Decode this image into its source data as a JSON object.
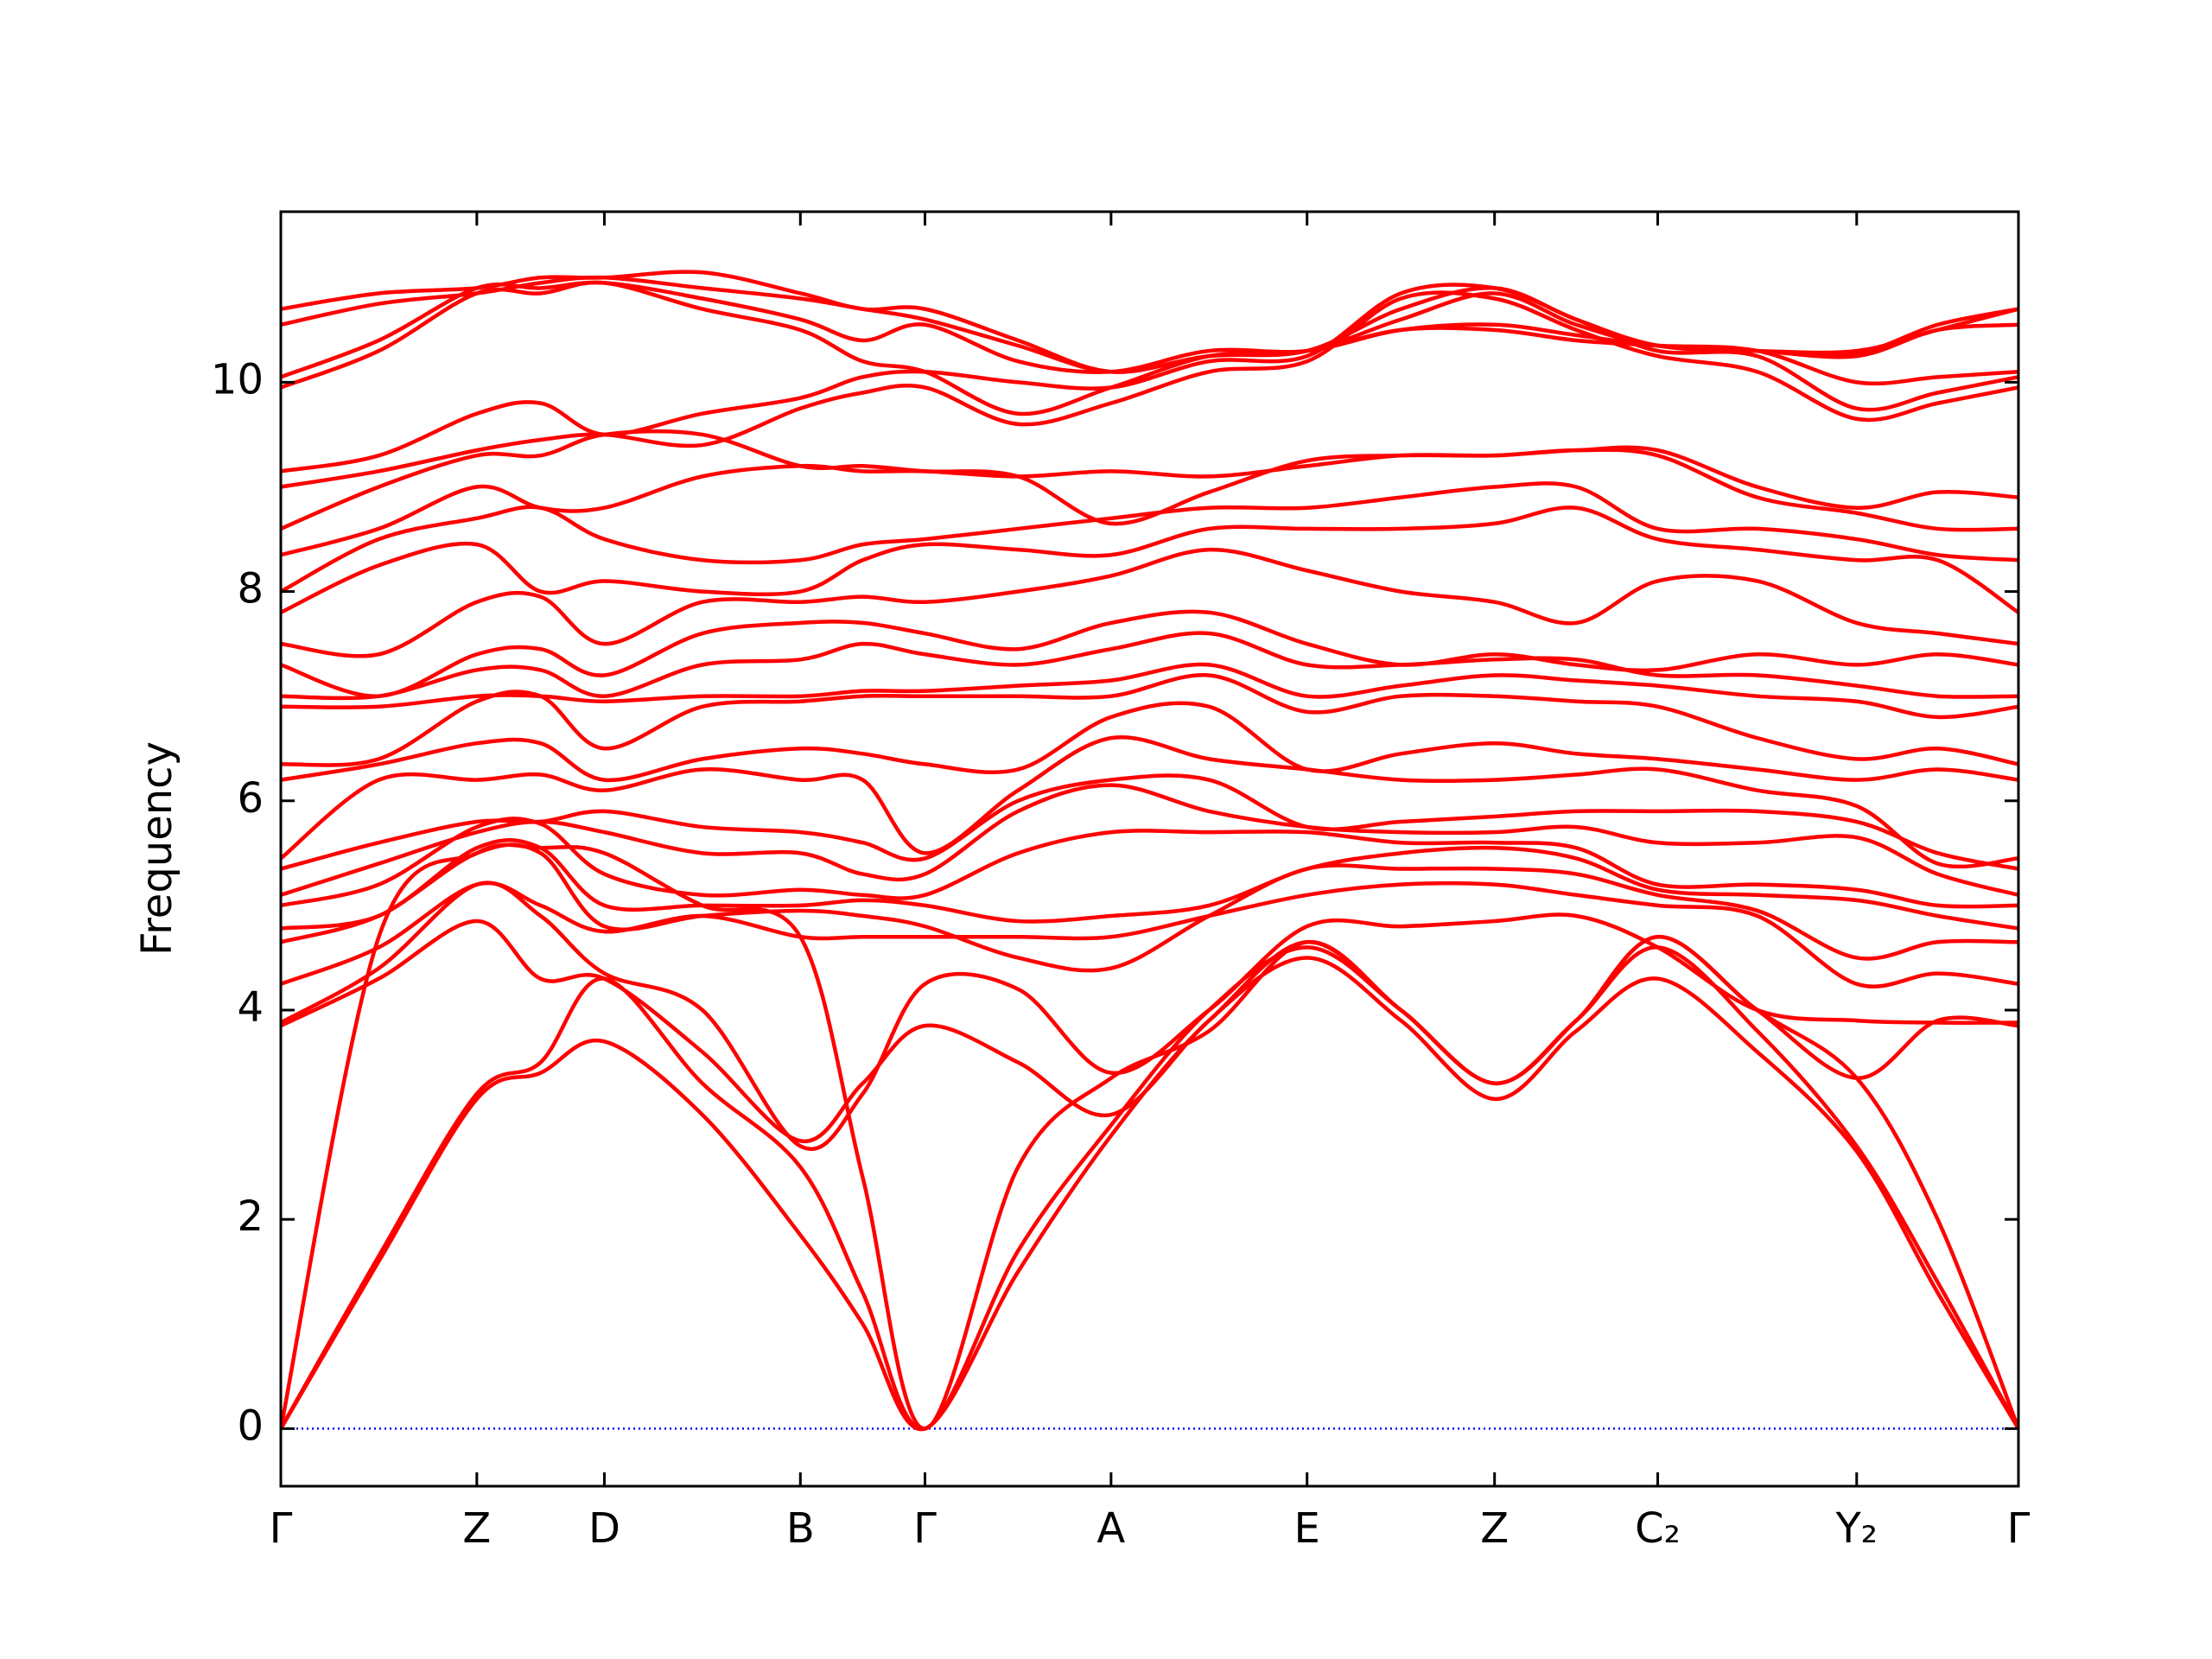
{
  "chart_data": {
    "type": "line",
    "y_label": "Frequency",
    "color": "#ff0000",
    "x": [
      0,
      0.0564,
      0.1128,
      0.1495,
      0.1862,
      0.2426,
      0.299,
      0.3349,
      0.3707,
      0.4243,
      0.4778,
      0.5342,
      0.5906,
      0.6446,
      0.6985,
      0.7455,
      0.7924,
      0.8497,
      0.9069,
      0.9535,
      1.0
    ],
    "xlim": [
      0,
      1.0
    ],
    "xticks": [
      {
        "value": 0,
        "label": "Γ"
      },
      {
        "value": 0.1128,
        "label": "Z"
      },
      {
        "value": 0.1862,
        "label": "D"
      },
      {
        "value": 0.299,
        "label": "B"
      },
      {
        "value": 0.3707,
        "label": "Γ"
      },
      {
        "value": 0.4778,
        "label": "A"
      },
      {
        "value": 0.5906,
        "label": "E"
      },
      {
        "value": 0.6985,
        "label": "Z"
      },
      {
        "value": 0.7924,
        "label": "C₂"
      },
      {
        "value": 0.9069,
        "label": "Y₂"
      },
      {
        "value": 1.0,
        "label": "Γ"
      }
    ],
    "ylim": [
      -0.55,
      11.63
    ],
    "yticks": [
      0,
      2,
      4,
      6,
      8,
      10
    ],
    "reference_line": {
      "value": 0,
      "color": "#0000ff"
    },
    "series": [
      {
        "values": [
          0,
          1.6,
          3.15,
          3.4,
          3.7,
          3.0,
          1.85,
          1.0,
          0,
          1.5,
          2.8,
          3.9,
          4.5,
          3.9,
          3.15,
          3.8,
          4.3,
          3.6,
          2.65,
          1.3,
          0
        ]
      },
      {
        "values": [
          0,
          1.65,
          3.2,
          3.5,
          4.3,
          3.3,
          2.5,
          1.3,
          0,
          1.7,
          2.9,
          4.0,
          4.6,
          4.0,
          3.3,
          3.9,
          4.6,
          3.8,
          2.7,
          1.4,
          0
        ]
      },
      {
        "values": [
          0,
          4.7,
          5.5,
          5.55,
          5.5,
          5.0,
          4.7,
          2.4,
          0,
          2.5,
          3.35,
          3.8,
          4.65,
          4.0,
          3.3,
          3.9,
          4.7,
          4.0,
          3.35,
          2.0,
          0
        ]
      },
      {
        "values": [
          3.85,
          4.3,
          4.85,
          4.3,
          4.3,
          3.6,
          2.75,
          3.3,
          3.85,
          3.5,
          3.0,
          3.9,
          4.65,
          4.0,
          3.3,
          3.9,
          4.7,
          4.0,
          3.35,
          3.9,
          3.85
        ]
      },
      {
        "values": [
          3.88,
          4.4,
          5.2,
          4.9,
          4.35,
          4.0,
          2.7,
          3.2,
          4.25,
          4.2,
          3.4,
          4.0,
          4.8,
          4.8,
          4.85,
          4.9,
          4.6,
          4.0,
          3.9,
          3.88,
          3.88
        ]
      },
      {
        "values": [
          4.25,
          4.6,
          5.2,
          5.0,
          4.75,
          4.9,
          4.7,
          4.7,
          4.7,
          4.7,
          4.7,
          4.9,
          5.1,
          5.2,
          5.2,
          5.1,
          5.0,
          4.9,
          4.25,
          4.35,
          4.25
        ]
      },
      {
        "values": [
          4.65,
          4.9,
          5.5,
          5.5,
          4.8,
          4.9,
          4.95,
          4.9,
          4.8,
          4.5,
          4.4,
          4.9,
          5.35,
          5.35,
          5.35,
          5.3,
          5.1,
          4.95,
          4.5,
          4.65,
          4.65
        ]
      },
      {
        "values": [
          4.78,
          4.9,
          5.55,
          5.55,
          5.0,
          5.0,
          5.0,
          5.05,
          5.0,
          4.85,
          4.9,
          5.0,
          5.35,
          5.5,
          5.55,
          5.45,
          5.15,
          5.1,
          5.05,
          4.9,
          4.78
        ]
      },
      {
        "values": [
          5.0,
          5.2,
          5.75,
          5.78,
          5.3,
          5.1,
          5.15,
          5.1,
          5.1,
          5.5,
          5.7,
          5.7,
          5.7,
          5.6,
          5.6,
          5.55,
          5.2,
          5.2,
          5.15,
          5.0,
          5.0
        ]
      },
      {
        "values": [
          5.1,
          5.4,
          5.7,
          5.8,
          5.7,
          5.5,
          5.5,
          5.3,
          5.3,
          5.9,
          6.15,
          5.9,
          5.75,
          5.7,
          5.7,
          5.75,
          5.6,
          5.6,
          5.65,
          5.3,
          5.1
        ]
      },
      {
        "values": [
          5.35,
          5.6,
          5.8,
          5.8,
          5.9,
          5.75,
          5.7,
          5.6,
          5.45,
          6.0,
          6.2,
          6.2,
          5.75,
          5.8,
          5.85,
          5.9,
          5.9,
          5.9,
          5.8,
          5.5,
          5.35
        ]
      },
      {
        "values": [
          5.45,
          6.2,
          6.2,
          6.25,
          6.1,
          6.3,
          6.2,
          6.2,
          5.5,
          6.1,
          6.6,
          6.4,
          6.3,
          6.2,
          6.2,
          6.25,
          6.3,
          6.1,
          5.95,
          5.4,
          5.45
        ]
      },
      {
        "values": [
          6.2,
          6.35,
          6.55,
          6.55,
          6.2,
          6.4,
          6.5,
          6.45,
          6.35,
          6.3,
          6.8,
          6.9,
          6.3,
          6.45,
          6.55,
          6.45,
          6.4,
          6.3,
          6.2,
          6.3,
          6.2
        ]
      },
      {
        "values": [
          6.35,
          6.4,
          6.95,
          7.0,
          6.5,
          6.9,
          6.95,
          7.0,
          7.0,
          7.0,
          7.0,
          7.2,
          6.85,
          7.0,
          7.0,
          6.95,
          6.9,
          6.6,
          6.4,
          6.5,
          6.35
        ]
      },
      {
        "values": [
          6.9,
          6.9,
          7.0,
          7.0,
          6.95,
          7.0,
          7.0,
          7.05,
          7.05,
          7.1,
          7.15,
          7.3,
          7.0,
          7.1,
          7.2,
          7.15,
          7.1,
          7.0,
          6.95,
          6.8,
          6.9
        ]
      },
      {
        "values": [
          7.0,
          7.0,
          7.25,
          7.25,
          7.0,
          7.3,
          7.35,
          7.5,
          7.4,
          7.3,
          7.45,
          7.6,
          7.3,
          7.3,
          7.35,
          7.35,
          7.2,
          7.2,
          7.1,
          7.0,
          7.0
        ]
      },
      {
        "values": [
          7.3,
          7.0,
          7.4,
          7.45,
          7.2,
          7.6,
          7.7,
          7.7,
          7.6,
          7.45,
          7.7,
          7.8,
          7.5,
          7.3,
          7.4,
          7.3,
          7.25,
          7.4,
          7.3,
          7.4,
          7.3
        ]
      },
      {
        "values": [
          7.5,
          7.4,
          7.9,
          7.95,
          7.5,
          7.9,
          7.9,
          7.95,
          7.9,
          8.0,
          8.15,
          8.4,
          8.2,
          8.0,
          7.9,
          7.7,
          8.1,
          8.1,
          7.7,
          7.6,
          7.5
        ]
      },
      {
        "values": [
          7.8,
          8.25,
          8.45,
          8.0,
          8.1,
          8.0,
          8.0,
          8.3,
          8.45,
          8.4,
          8.35,
          8.6,
          8.6,
          8.6,
          8.65,
          8.8,
          8.5,
          8.4,
          8.3,
          8.3,
          7.8
        ]
      },
      {
        "values": [
          8.0,
          8.5,
          8.7,
          8.8,
          8.5,
          8.3,
          8.3,
          8.45,
          8.5,
          8.6,
          8.7,
          8.8,
          8.8,
          8.9,
          9.0,
          9.0,
          8.6,
          8.6,
          8.5,
          8.35,
          8.3
        ]
      },
      {
        "values": [
          8.35,
          8.6,
          9.0,
          8.8,
          8.8,
          9.1,
          9.2,
          9.15,
          9.15,
          9.1,
          9.15,
          9.1,
          9.2,
          9.3,
          9.3,
          9.35,
          9.3,
          8.9,
          8.75,
          8.6,
          8.6
        ]
      },
      {
        "values": [
          8.6,
          9.0,
          9.3,
          9.3,
          9.5,
          9.5,
          9.2,
          9.2,
          9.15,
          9.1,
          8.65,
          8.95,
          9.25,
          9.3,
          9.3,
          9.35,
          9.35,
          9.0,
          8.8,
          8.95,
          8.9
        ]
      },
      {
        "values": [
          9.0,
          9.15,
          9.35,
          9.45,
          9.5,
          9.4,
          9.75,
          9.9,
          9.95,
          9.6,
          9.8,
          10.1,
          10.2,
          10.8,
          10.8,
          10.5,
          10.25,
          10.1,
          9.65,
          9.8,
          9.95
        ]
      },
      {
        "values": [
          9.15,
          9.3,
          9.7,
          9.8,
          9.5,
          9.7,
          9.85,
          10.05,
          10.1,
          10.0,
          9.95,
          10.2,
          10.25,
          10.85,
          10.9,
          10.6,
          10.3,
          10.25,
          9.75,
          9.9,
          10.05
        ]
      },
      {
        "values": [
          9.95,
          10.3,
          10.85,
          10.85,
          10.95,
          10.7,
          10.5,
          10.2,
          10.1,
          9.7,
          9.95,
          10.25,
          10.3,
          10.5,
          10.5,
          10.4,
          10.35,
          10.3,
          10.0,
          10.05,
          10.1
        ]
      },
      {
        "values": [
          10.05,
          10.4,
          10.9,
          10.9,
          10.95,
          10.8,
          10.6,
          10.4,
          10.55,
          10.2,
          10.1,
          10.3,
          10.3,
          10.5,
          10.55,
          10.45,
          10.35,
          10.3,
          10.25,
          10.5,
          10.55
        ]
      },
      {
        "values": [
          10.55,
          10.75,
          10.85,
          10.95,
          11.0,
          10.9,
          10.8,
          10.7,
          10.6,
          10.35,
          10.1,
          10.25,
          10.3,
          10.6,
          10.85,
          10.55,
          10.35,
          10.3,
          10.3,
          10.5,
          10.7
        ]
      },
      {
        "values": [
          10.7,
          10.85,
          10.9,
          11.0,
          11.0,
          11.05,
          10.85,
          10.7,
          10.7,
          10.4,
          10.1,
          10.25,
          10.3,
          10.7,
          10.9,
          10.6,
          10.35,
          10.3,
          10.28,
          10.55,
          10.7
        ]
      }
    ]
  }
}
